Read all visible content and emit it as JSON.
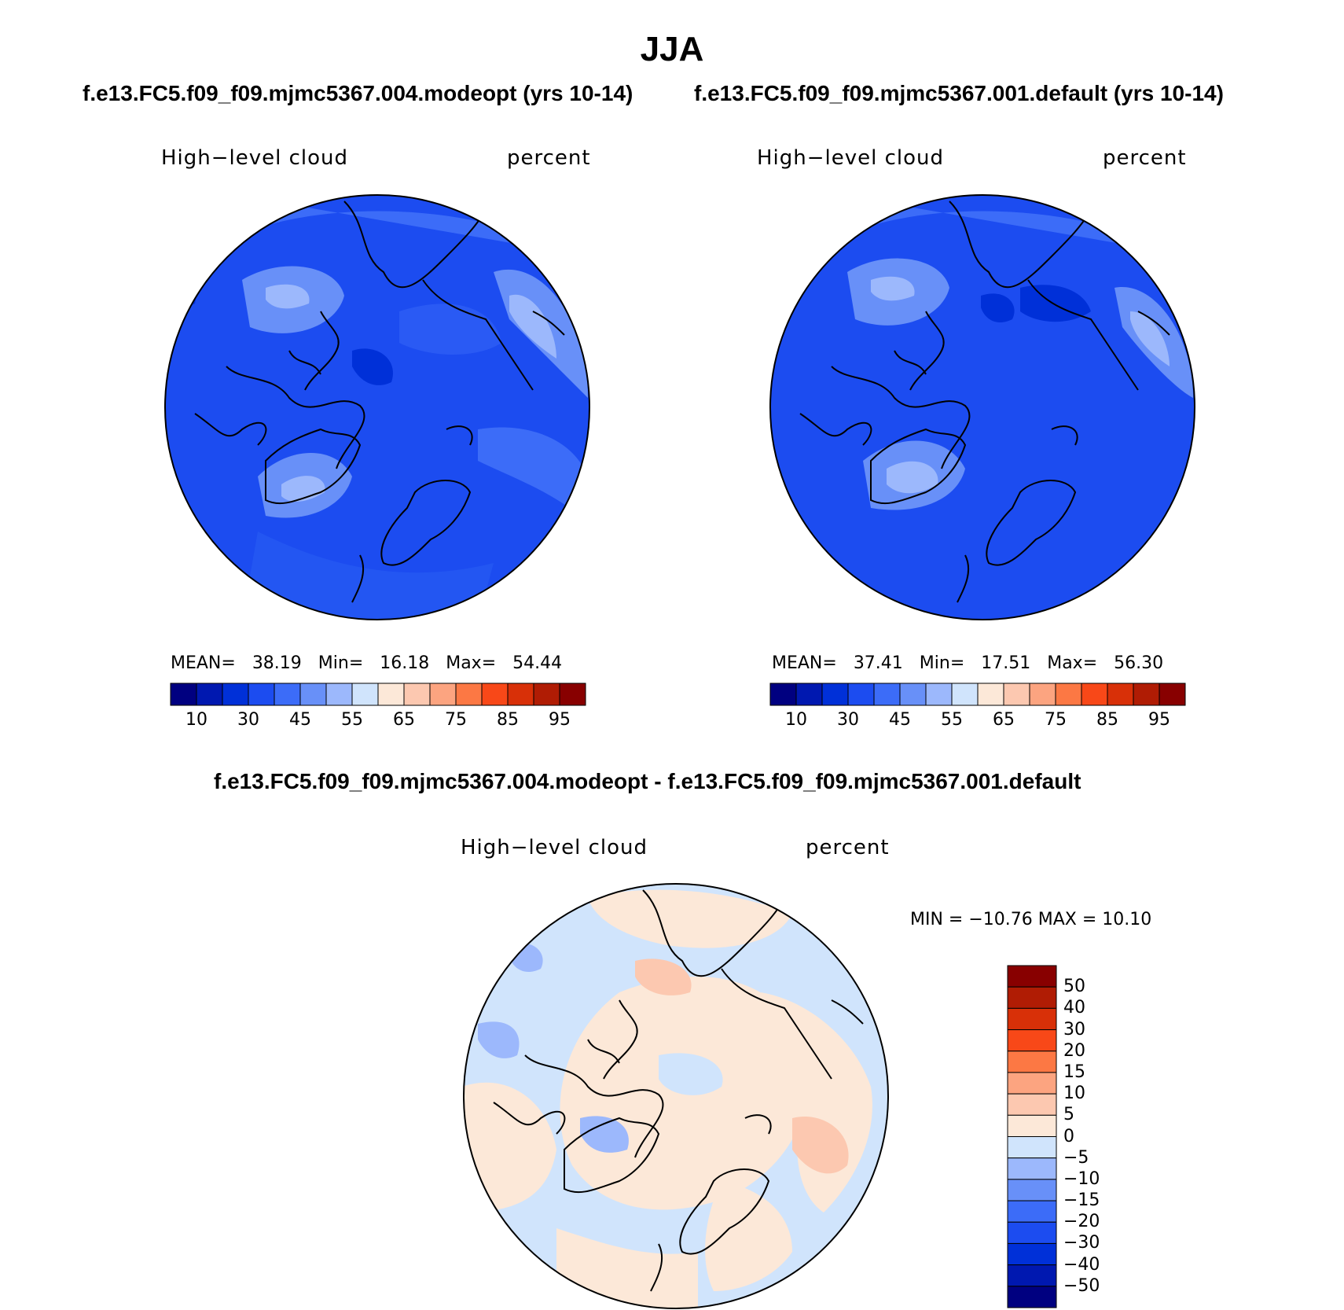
{
  "title": "JJA",
  "top_left": {
    "case": "f.e13.FC5.f09_f09.mjmc5367.004.modeopt (yrs 10-14)",
    "var_label": "High−level cloud",
    "units": "percent",
    "mean_label": "MEAN=",
    "mean": "38.19",
    "min_label": "Min=",
    "min": "16.18",
    "max_label": "Max=",
    "max": "54.44"
  },
  "top_right": {
    "case": "f.e13.FC5.f09_f09.mjmc5367.001.default (yrs 10-14)",
    "var_label": "High−level cloud",
    "units": "percent",
    "mean_label": "MEAN=",
    "mean": "37.41",
    "min_label": "Min=",
    "min": "17.51",
    "max_label": "Max=",
    "max": "56.30"
  },
  "diff": {
    "title": "f.e13.FC5.f09_f09.mjmc5367.004.modeopt - f.e13.FC5.f09_f09.mjmc5367.001.default",
    "var_label": "High−level cloud",
    "units": "percent",
    "minmax": "MIN = −10.76 MAX =   10.10"
  },
  "abs_colorbar": {
    "colors": [
      "#000080",
      "#0018b0",
      "#0030d8",
      "#1c4cf0",
      "#3c6cf8",
      "#6890f8",
      "#9cb8fc",
      "#d0e4fc",
      "#fce8d8",
      "#fcc8b0",
      "#fca480",
      "#fc7844",
      "#f84818",
      "#d83008",
      "#b01c04",
      "#880000"
    ],
    "ticks": [
      "10",
      "30",
      "45",
      "55",
      "65",
      "75",
      "85",
      "95"
    ]
  },
  "diff_colorbar": {
    "colors": [
      "#880000",
      "#b01c04",
      "#d83008",
      "#f84818",
      "#fc7844",
      "#fca480",
      "#fcc8b0",
      "#fce8d8",
      "#d0e4fc",
      "#9cb8fc",
      "#6890f8",
      "#3c6cf8",
      "#1c4cf0",
      "#0030d8",
      "#0018b0",
      "#000080"
    ],
    "ticks": [
      "50",
      "40",
      "30",
      "20",
      "15",
      "10",
      "5",
      "0",
      "−5",
      "−10",
      "−15",
      "−20",
      "−30",
      "−40",
      "−50"
    ]
  }
}
